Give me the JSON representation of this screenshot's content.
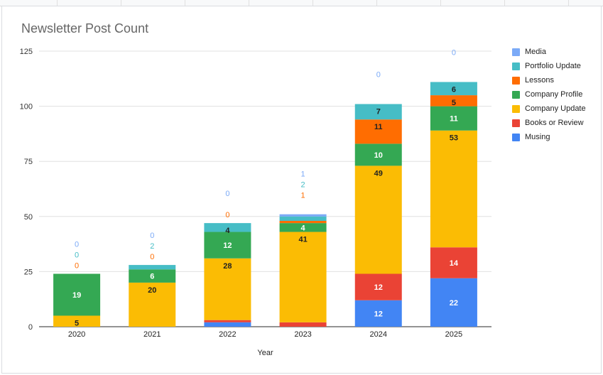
{
  "chart_data": {
    "type": "bar",
    "stacked": true,
    "title": "Newsletter Post Count",
    "xlabel": "Year",
    "ylabel": "",
    "ylim": [
      0,
      125
    ],
    "yticks": [
      "0",
      "25",
      "50",
      "75",
      "100",
      "125"
    ],
    "categories": [
      "2020",
      "2021",
      "2022",
      "2023",
      "2024",
      "2025"
    ],
    "series": [
      {
        "name": "Musing",
        "color": "#4285f4",
        "values": [
          0,
          0,
          2,
          0,
          12,
          22
        ],
        "labels": [
          "0",
          "0",
          "2",
          "0",
          "12",
          "22"
        ],
        "label_color": "#ffffff"
      },
      {
        "name": "Books or Review",
        "color": "#ea4335",
        "values": [
          0,
          0,
          1,
          2,
          12,
          14
        ],
        "labels": [
          "0",
          "0",
          "1",
          "2",
          "12",
          "14"
        ],
        "label_color": "#ffffff"
      },
      {
        "name": "Company Update",
        "color": "#fbbc04",
        "values": [
          5,
          20,
          28,
          41,
          49,
          53
        ],
        "labels": [
          "5",
          "20",
          "28",
          "41",
          "49",
          "53"
        ],
        "label_color": "#222222"
      },
      {
        "name": "Company Profile",
        "color": "#34a853",
        "values": [
          19,
          6,
          12,
          4,
          10,
          11
        ],
        "labels": [
          "19",
          "6",
          "12",
          "4",
          "10",
          "11"
        ],
        "label_color": "#ffffff"
      },
      {
        "name": "Lessons",
        "color": "#ff6d01",
        "values": [
          0,
          0,
          0,
          1,
          11,
          5
        ],
        "labels": [
          "0",
          "0",
          "0",
          "1",
          "11",
          "5"
        ],
        "label_color": "#222222"
      },
      {
        "name": "Portfolio Update",
        "color": "#46bdc6",
        "values": [
          0,
          2,
          4,
          2,
          7,
          6
        ],
        "labels": [
          "0",
          "2",
          "4",
          "2",
          "7",
          "6"
        ],
        "label_color": "#222222"
      },
      {
        "name": "Media",
        "color": "#7baaf7",
        "values": [
          0,
          0,
          0,
          1,
          0,
          0
        ],
        "labels": [
          "0",
          "0",
          "0",
          "1",
          "0",
          "0"
        ],
        "label_color": "#7baaf7"
      }
    ],
    "legend_order": [
      "Media",
      "Portfolio Update",
      "Lessons",
      "Company Profile",
      "Company Update",
      "Books or Review",
      "Musing"
    ],
    "legend_position": "right",
    "grid": true
  }
}
